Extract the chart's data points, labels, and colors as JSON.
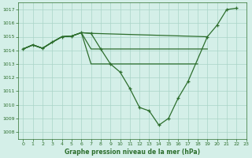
{
  "title": "Graphe pression niveau de la mer (hPa)",
  "background_color": "#d4efe8",
  "grid_color": "#aad4c8",
  "line_color": "#2d6e2d",
  "xlim": [
    -0.5,
    23
  ],
  "ylim": [
    1007.5,
    1017.5
  ],
  "yticks": [
    1008,
    1009,
    1010,
    1011,
    1012,
    1013,
    1014,
    1015,
    1016,
    1017
  ],
  "xticks": [
    0,
    1,
    2,
    3,
    4,
    5,
    6,
    7,
    8,
    9,
    10,
    11,
    12,
    13,
    14,
    15,
    16,
    17,
    18,
    19,
    20,
    21,
    22,
    23
  ],
  "line1_x": [
    0,
    1,
    2,
    3,
    4,
    5,
    6,
    7,
    8,
    9,
    10,
    11,
    12,
    13,
    14,
    15,
    16,
    17,
    19,
    20,
    21,
    22
  ],
  "line1_y": [
    1014.1,
    1014.4,
    1014.15,
    1014.6,
    1015.0,
    1015.05,
    1015.3,
    1015.25,
    1014.1,
    1013.0,
    1012.4,
    1011.2,
    1009.8,
    1009.55,
    1008.5,
    1009.0,
    1010.5,
    1011.7,
    1015.0,
    1015.85,
    1017.0,
    1017.1
  ],
  "line2_x": [
    0,
    1,
    2,
    3,
    4,
    5,
    6,
    7,
    19
  ],
  "line2_y": [
    1014.1,
    1014.4,
    1014.15,
    1014.6,
    1015.0,
    1015.05,
    1015.3,
    1015.25,
    1015.0
  ],
  "line3_x": [
    0,
    1,
    2,
    3,
    4,
    5,
    6,
    7,
    19
  ],
  "line3_y": [
    1014.1,
    1014.4,
    1014.15,
    1014.6,
    1015.0,
    1015.05,
    1015.3,
    1014.1,
    1014.1
  ],
  "line4_x": [
    0,
    1,
    2,
    3,
    4,
    5,
    6,
    7,
    18
  ],
  "line4_y": [
    1014.1,
    1014.4,
    1014.15,
    1014.6,
    1015.0,
    1015.05,
    1015.3,
    1013.0,
    1013.0
  ]
}
